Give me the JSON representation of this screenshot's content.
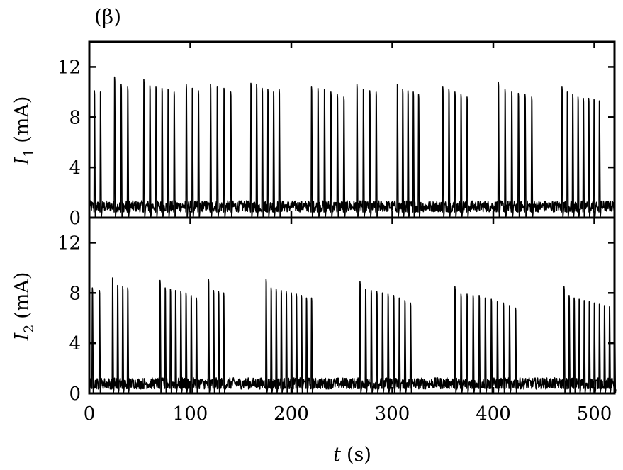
{
  "chart_data": [
    {
      "type": "line",
      "panel_label": "(β)",
      "ylabel": {
        "symbol": "I",
        "subscript": "1",
        "unit": "(mA)"
      },
      "ylim": [
        0,
        14
      ],
      "yticks": [
        0,
        4,
        8,
        12
      ],
      "xlim": [
        0,
        520
      ],
      "xticks": [
        0,
        100,
        200,
        300,
        400,
        500
      ],
      "baseline_level": 0.9,
      "series": [
        {
          "bursts": [
            {
              "start": 5,
              "end": 11,
              "peaks": [
                10.1,
                10.0
              ]
            },
            {
              "start": 25,
              "end": 38,
              "peaks": [
                11.2,
                10.6,
                10.4
              ]
            },
            {
              "start": 54,
              "end": 84,
              "peaks": [
                11.0,
                10.5,
                10.4,
                10.3,
                10.2,
                10.0
              ]
            },
            {
              "start": 96,
              "end": 108,
              "peaks": [
                10.6,
                10.3,
                10.1
              ]
            },
            {
              "start": 120,
              "end": 140,
              "peaks": [
                10.6,
                10.4,
                10.3,
                10.0
              ]
            },
            {
              "start": 160,
              "end": 188,
              "peaks": [
                10.7,
                10.6,
                10.3,
                10.2,
                10.0,
                10.2
              ]
            },
            {
              "start": 220,
              "end": 252,
              "peaks": [
                10.4,
                10.3,
                10.2,
                10.0,
                9.8,
                9.6
              ]
            },
            {
              "start": 265,
              "end": 284,
              "peaks": [
                10.6,
                10.2,
                10.1,
                10.0
              ]
            },
            {
              "start": 305,
              "end": 326,
              "peaks": [
                10.6,
                10.2,
                10.1,
                10.0,
                9.8
              ]
            },
            {
              "start": 350,
              "end": 374,
              "peaks": [
                10.4,
                10.2,
                10.0,
                9.8,
                9.6
              ]
            },
            {
              "start": 405,
              "end": 438,
              "peaks": [
                10.8,
                10.2,
                10.0,
                9.9,
                9.8,
                9.6
              ]
            },
            {
              "start": 468,
              "end": 505,
              "peaks": [
                10.4,
                10.0,
                9.8,
                9.6,
                9.5,
                9.5,
                9.4,
                9.3
              ]
            }
          ]
        }
      ]
    },
    {
      "type": "line",
      "ylabel": {
        "symbol": "I",
        "subscript": "2",
        "unit": "(mA)"
      },
      "ylim": [
        0,
        14
      ],
      "yticks": [
        0,
        4,
        8,
        12
      ],
      "xlim": [
        0,
        520
      ],
      "xticks": [
        0,
        100,
        200,
        300,
        400,
        500
      ],
      "xlabel": {
        "symbol": "t",
        "unit": "(s)"
      },
      "baseline_level": 0.8,
      "series": [
        {
          "bursts": [
            {
              "start": 3,
              "end": 10,
              "peaks": [
                8.4,
                8.2
              ]
            },
            {
              "start": 23,
              "end": 38,
              "peaks": [
                9.2,
                8.6,
                8.5,
                8.4
              ]
            },
            {
              "start": 70,
              "end": 106,
              "peaks": [
                9.0,
                8.4,
                8.3,
                8.2,
                8.1,
                8.0,
                7.8,
                7.6
              ]
            },
            {
              "start": 118,
              "end": 133,
              "peaks": [
                9.1,
                8.2,
                8.1,
                8.0
              ]
            },
            {
              "start": 175,
              "end": 220,
              "peaks": [
                9.1,
                8.4,
                8.3,
                8.2,
                8.1,
                8.0,
                7.9,
                7.8,
                7.6,
                7.6
              ]
            },
            {
              "start": 268,
              "end": 318,
              "peaks": [
                8.9,
                8.3,
                8.2,
                8.1,
                8.0,
                7.9,
                7.8,
                7.6,
                7.4,
                7.2
              ]
            },
            {
              "start": 362,
              "end": 422,
              "peaks": [
                8.5,
                7.9,
                7.9,
                7.8,
                7.8,
                7.6,
                7.5,
                7.3,
                7.2,
                7.0,
                6.8
              ]
            },
            {
              "start": 470,
              "end": 520,
              "peaks": [
                8.5,
                7.8,
                7.6,
                7.5,
                7.4,
                7.3,
                7.2,
                7.1,
                7.0,
                6.9,
                6.8
              ]
            }
          ]
        }
      ]
    }
  ]
}
